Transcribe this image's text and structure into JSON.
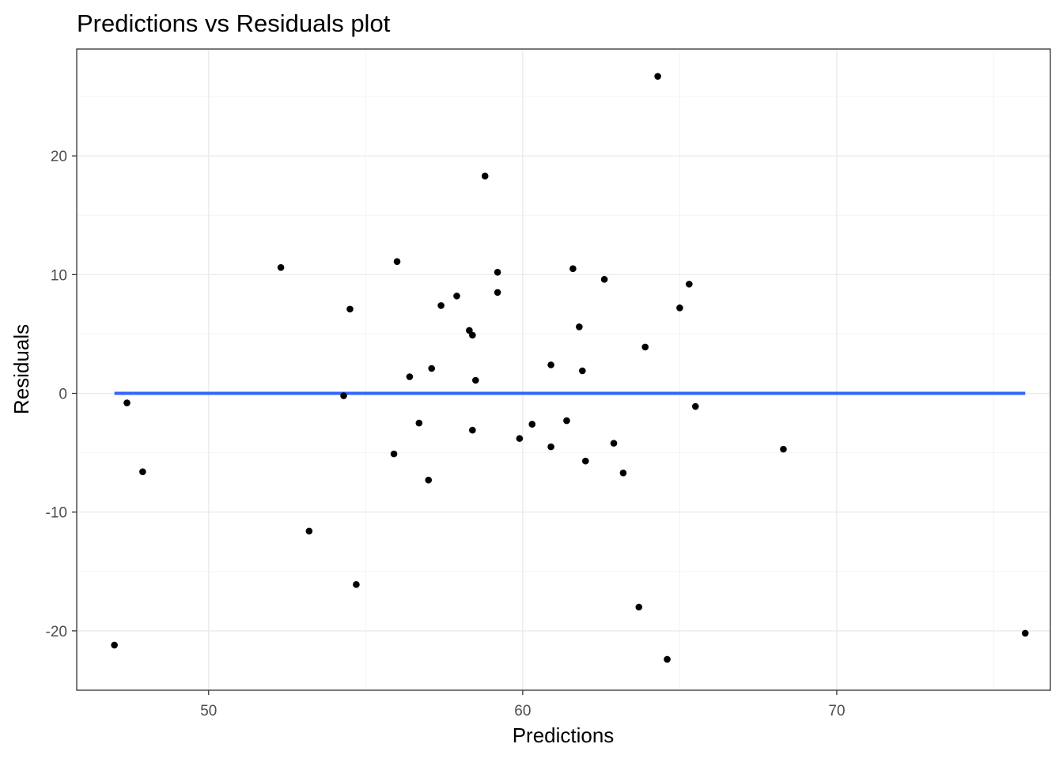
{
  "chart_data": {
    "type": "scatter",
    "title": "Predictions vs Residuals plot",
    "xlabel": "Predictions",
    "ylabel": "Residuals",
    "xlim": [
      45.8,
      76.8
    ],
    "ylim": [
      -25.0,
      29.0
    ],
    "x_ticks": [
      50,
      60,
      70
    ],
    "x_tick_labels": [
      "50",
      "60",
      "70"
    ],
    "x_minor_ticks": [
      55,
      65,
      75
    ],
    "y_ticks": [
      -20,
      -10,
      0,
      10,
      20
    ],
    "y_tick_labels": [
      "-20",
      "-10",
      "0",
      "10",
      "20"
    ],
    "y_minor_ticks": [
      -15,
      -5,
      5,
      15,
      25
    ],
    "grid": true,
    "legend": false,
    "points": {
      "color": "#000000",
      "x": [
        47.4,
        47.9,
        47.0,
        52.3,
        53.2,
        54.5,
        54.3,
        54.7,
        55.9,
        56.0,
        56.4,
        56.7,
        57.0,
        57.1,
        57.4,
        57.9,
        58.3,
        58.4,
        58.5,
        58.4,
        58.8,
        59.2,
        59.2,
        59.9,
        60.3,
        60.9,
        60.9,
        61.4,
        61.6,
        61.8,
        61.9,
        62.0,
        62.6,
        62.9,
        63.2,
        63.7,
        63.9,
        64.3,
        64.6,
        65.0,
        65.3,
        65.5,
        68.3,
        76.0
      ],
      "y": [
        -0.8,
        -6.6,
        -21.2,
        10.6,
        -11.6,
        7.1,
        -0.2,
        -16.1,
        -5.1,
        11.1,
        1.4,
        -2.5,
        -7.3,
        2.1,
        7.4,
        8.2,
        5.3,
        4.9,
        1.1,
        -3.1,
        18.3,
        10.2,
        8.5,
        -3.8,
        -2.6,
        2.4,
        -4.5,
        -2.3,
        10.5,
        5.6,
        1.9,
        -5.7,
        9.6,
        -4.2,
        -6.7,
        -18.0,
        3.9,
        26.7,
        -22.4,
        7.2,
        9.2,
        -1.1,
        -4.7,
        -20.2
      ]
    },
    "reference_line": {
      "y": 0,
      "x_range": [
        47.0,
        76.0
      ],
      "color": "#3366FF"
    },
    "colors": {
      "grid_major": "#ebebeb",
      "grid_minor": "#f4f4f4",
      "panel_border": "#333333",
      "tick_label": "#4d4d4d"
    }
  }
}
